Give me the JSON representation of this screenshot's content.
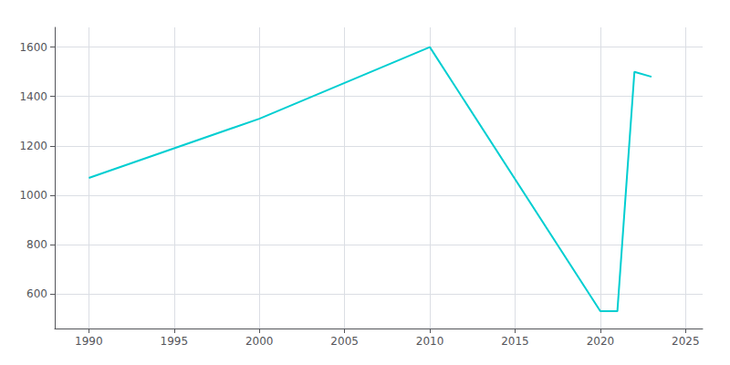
{
  "chart_data": {
    "type": "line",
    "x": [
      1990,
      2000,
      2010,
      2020,
      2021,
      2022,
      2023
    ],
    "values": [
      1070,
      1310,
      1600,
      530,
      530,
      1500,
      1480
    ],
    "color": "#00CED1",
    "xlim": [
      1988,
      2026
    ],
    "ylim": [
      460,
      1680
    ],
    "xticks": [
      1990,
      1995,
      2000,
      2005,
      2010,
      2015,
      2020,
      2025
    ],
    "yticks": [
      600,
      800,
      1000,
      1200,
      1400,
      1600
    ],
    "grid": true
  }
}
